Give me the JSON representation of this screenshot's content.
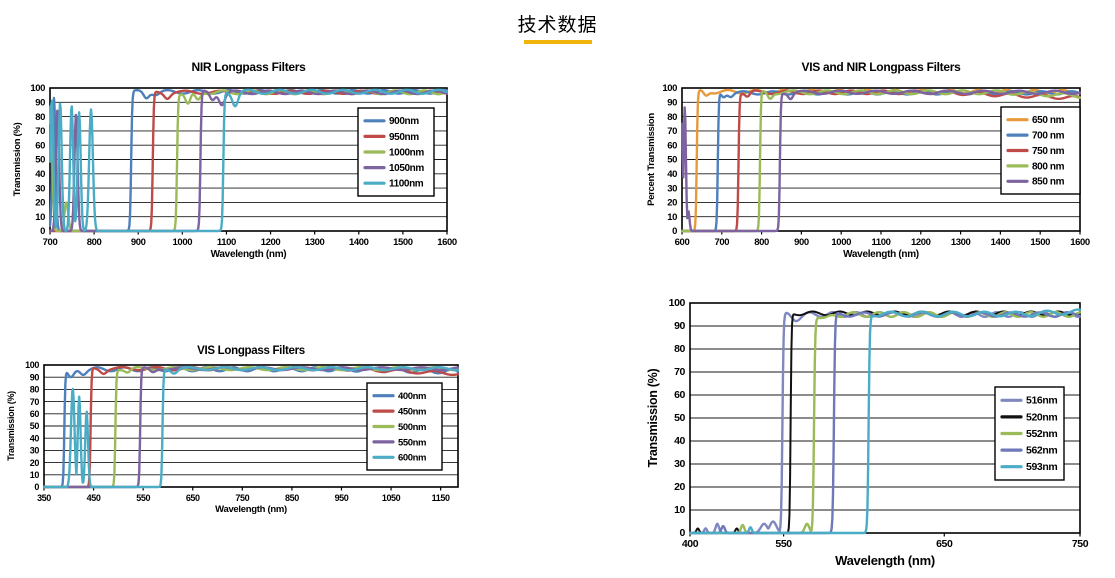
{
  "page": {
    "title": "技术数据",
    "title_underline_color": "#F0B40A",
    "background": "#ffffff"
  },
  "chart_data": [
    {
      "id": "nir-longpass",
      "type": "line",
      "title": "NIR Longpass Filters",
      "xlabel": "Wavelength (nm)",
      "ylabel": "Transmission (%)",
      "x_min": 700,
      "x_max": 1600,
      "x_ticks": [
        700,
        800,
        900,
        1000,
        1100,
        1200,
        1300,
        1400,
        1500,
        1600
      ],
      "y_min": 0,
      "y_max": 100,
      "y_ticks": [
        0,
        10,
        20,
        30,
        40,
        50,
        60,
        70,
        80,
        90,
        100
      ],
      "grid": "horizontal",
      "legend_position": "inside-right",
      "series": [
        {
          "label": "900nm",
          "color": "#4E80BC",
          "cuton": 884,
          "rise_w": 5,
          "peak": 97.3,
          "spikes": [
            [
              709,
              93,
              5
            ]
          ],
          "notches": [
            [
              918,
              4,
              8
            ],
            [
              941,
              1.5,
              10
            ]
          ],
          "ripple": {
            "amp": 1.2,
            "period": 70,
            "phase": 0.5
          }
        },
        {
          "label": "950nm",
          "color": "#BE4B48",
          "cuton": 933,
          "rise_w": 5,
          "peak": 97,
          "spikes": [],
          "notches": [
            [
              966,
              3.5,
              9
            ]
          ],
          "ripple": {
            "amp": 1.1,
            "period": 80,
            "phase": 2.1
          }
        },
        {
          "label": "1000nm",
          "color": "#9BBB59",
          "cuton": 988,
          "rise_w": 5,
          "peak": 97,
          "spikes": [
            [
              702,
              88,
              5
            ],
            [
              737,
              20,
              6
            ]
          ],
          "notches": [
            [
              1013,
              8,
              8
            ],
            [
              1035,
              6,
              9
            ]
          ],
          "ripple": {
            "amp": 1.3,
            "period": 65,
            "phase": 4.0
          }
        },
        {
          "label": "1050nm",
          "color": "#7E63A1",
          "cuton": 1041,
          "rise_w": 5,
          "peak": 97,
          "spikes": [
            [
              717,
              85,
              5
            ],
            [
              759,
              82,
              5
            ]
          ],
          "notches": [
            [
              1068,
              5,
              8
            ],
            [
              1090,
              8,
              9
            ]
          ],
          "ripple": {
            "amp": 1.2,
            "period": 75,
            "phase": 1.2
          }
        },
        {
          "label": "1100nm",
          "color": "#4BACC6",
          "cuton": 1093,
          "rise_w": 5,
          "peak": 97.4,
          "spikes": [
            [
              704,
              92,
              5
            ],
            [
              723,
              90,
              5
            ],
            [
              749,
              88,
              5
            ],
            [
              766,
              83,
              5
            ],
            [
              793,
              85,
              6
            ]
          ],
          "notches": [
            [
              1120,
              9,
              9
            ]
          ],
          "ripple": {
            "amp": 1.4,
            "period": 72,
            "phase": 3.0
          }
        }
      ]
    },
    {
      "id": "vis-nir-longpass",
      "type": "line",
      "title": "VIS and NIR Longpass Filters",
      "xlabel": "Wavelength (nm)",
      "ylabel": "Percent Transmission",
      "x_min": 600,
      "x_max": 1600,
      "x_ticks": [
        600,
        700,
        800,
        900,
        1000,
        1100,
        1200,
        1300,
        1400,
        1500,
        1600
      ],
      "y_min": 0,
      "y_max": 100,
      "y_ticks": [
        0,
        10,
        20,
        30,
        40,
        50,
        60,
        70,
        80,
        90,
        100
      ],
      "grid": "horizontal",
      "legend_position": "inside-right",
      "series": [
        {
          "label": "650 nm",
          "color": "#E69A3C",
          "cuton": 637,
          "rise_w": 5,
          "peak": 97.4,
          "spikes": [],
          "notches": [
            [
              660,
              3,
              8
            ]
          ],
          "ripple": {
            "amp": 1.2,
            "period": 70,
            "phase": 0.8
          }
        },
        {
          "label": "700 nm",
          "color": "#4E80BC",
          "cuton": 690,
          "rise_w": 5,
          "peak": 96.6,
          "spikes": [],
          "notches": [
            [
              704,
              2.5,
              7
            ],
            [
              723,
              2,
              8
            ]
          ],
          "ripple": {
            "amp": 1.1,
            "period": 75,
            "phase": 2.5
          }
        },
        {
          "label": "750 nm",
          "color": "#BE4B48",
          "cuton": 742,
          "rise_w": 5,
          "peak": 97,
          "spikes": [],
          "notches": [
            [
              765,
              3,
              8
            ]
          ],
          "ripple": {
            "amp": 1.2,
            "period": 80,
            "phase": 4.5
          },
          "drift": {
            "from": 1250,
            "delta": -4
          }
        },
        {
          "label": "800 nm",
          "color": "#9BBB59",
          "cuton": 796,
          "rise_w": 5,
          "peak": 97,
          "spikes": [],
          "notches": [
            [
              821,
              4,
              8
            ]
          ],
          "ripple": {
            "amp": 1.3,
            "period": 85,
            "phase": 1.7
          },
          "drift": {
            "from": 1400,
            "delta": -2.5
          }
        },
        {
          "label": "850 nm",
          "color": "#7E63A1",
          "cuton": 846,
          "rise_w": 5,
          "peak": 97,
          "spikes": [
            [
              599,
              78,
              5
            ],
            [
              607,
              87,
              4
            ],
            [
              616,
              14,
              4
            ]
          ],
          "notches": [
            [
              873,
              4,
              8
            ]
          ],
          "ripple": {
            "amp": 1.1,
            "period": 90,
            "phase": 3.6
          }
        }
      ]
    },
    {
      "id": "vis-longpass",
      "type": "line",
      "title": "VIS Longpass Filters",
      "xlabel": "Wavelength (nm)",
      "ylabel": "Transmission (%)",
      "x_min": 350,
      "x_max": 1185,
      "x_ticks": [
        350,
        450,
        550,
        650,
        750,
        850,
        950,
        1050,
        1150
      ],
      "y_min": 0,
      "y_max": 100,
      "y_ticks": [
        0,
        10,
        20,
        30,
        40,
        50,
        60,
        70,
        80,
        90,
        100
      ],
      "grid": "horizontal",
      "legend_position": "inside-right",
      "series": [
        {
          "label": "400nm",
          "color": "#4E80BC",
          "cuton": 391,
          "rise_w": 4,
          "peak": 96.5,
          "spikes": [],
          "notches": [
            [
              404,
              8,
              9
            ],
            [
              429,
              3,
              8
            ]
          ],
          "ripple": {
            "amp": 1.6,
            "period": 55,
            "phase": 0.3
          },
          "drift": {
            "from": 950,
            "delta": -2
          }
        },
        {
          "label": "450nm",
          "color": "#BE4B48",
          "cuton": 444,
          "rise_w": 4,
          "peak": 97,
          "spikes": [],
          "notches": [
            [
              470,
              3,
              8
            ]
          ],
          "ripple": {
            "amp": 1.3,
            "period": 70,
            "phase": 2.2
          },
          "drift": {
            "from": 950,
            "delta": -4
          }
        },
        {
          "label": "500nm",
          "color": "#9BBB59",
          "cuton": 494,
          "rise_w": 4,
          "peak": 97,
          "spikes": [],
          "notches": [
            [
              519,
              3,
              8
            ]
          ],
          "ripple": {
            "amp": 1.2,
            "period": 75,
            "phase": 4.1
          }
        },
        {
          "label": "550nm",
          "color": "#7E63A1",
          "cuton": 544,
          "rise_w": 4,
          "peak": 97,
          "spikes": [],
          "notches": [
            [
              569,
              3,
              8
            ]
          ],
          "ripple": {
            "amp": 1.1,
            "period": 80,
            "phase": 1.0
          }
        },
        {
          "label": "600nm",
          "color": "#4BACC6",
          "cuton": 589,
          "rise_w": 4,
          "peak": 97,
          "spikes": [
            [
              408,
              81,
              5
            ],
            [
              421,
              74,
              4
            ],
            [
              436,
              62,
              4
            ]
          ],
          "notches": [
            [
              613,
              3,
              8
            ]
          ],
          "ripple": {
            "amp": 1.2,
            "period": 72,
            "phase": 3.2
          }
        }
      ]
    },
    {
      "id": "dye-longpass",
      "type": "line",
      "title": "",
      "xlabel": "Wavelength (nm)",
      "ylabel": "Transmission (%)",
      "x_axis_nonlinear": true,
      "frac_units": true,
      "x_min": 400,
      "x_max": 750,
      "x_ticks": [
        {
          "v": "400",
          "f": 0
        },
        {
          "v": "550",
          "f": 0.24
        },
        {
          "v": "650",
          "f": 0.652
        },
        {
          "v": "750",
          "f": 1
        }
      ],
      "y_min": 0,
      "y_max": 100,
      "y_ticks": [
        0,
        10,
        20,
        30,
        40,
        50,
        60,
        70,
        80,
        90,
        100
      ],
      "grid": "horizontal",
      "legend_position": "inside-right",
      "series": [
        {
          "label": "516nm",
          "color": "#8088C0",
          "cuton": 0.237,
          "rise_w": 0.006,
          "peak": 95,
          "spikes": [
            [
              0.04,
              2,
              0.005
            ],
            [
              0.07,
              4,
              0.006
            ],
            [
              0.19,
              4,
              0.012
            ],
            [
              0.213,
              5,
              0.012
            ]
          ],
          "notches": [
            [
              0.27,
              2,
              0.015
            ]
          ],
          "ripple": {
            "amp": 1.0,
            "period": 0.06,
            "phase": 0.6
          }
        },
        {
          "label": "520nm",
          "color": "#111111",
          "lw": 2.0,
          "cuton": 0.258,
          "rise_w": 0.005,
          "peak": 95.5,
          "spikes": [
            [
              0.02,
              2,
              0.005
            ],
            [
              0.12,
              2,
              0.005
            ]
          ],
          "notches": [],
          "ripple": {
            "amp": 0.8,
            "period": 0.07,
            "phase": 2.8
          }
        },
        {
          "label": "552nm",
          "color": "#9BBB59",
          "cuton": 0.318,
          "rise_w": 0.006,
          "peak": 95,
          "spikes": [
            [
              0.135,
              3.5,
              0.006
            ],
            [
              0.3,
              4,
              0.008
            ]
          ],
          "notches": [
            [
              0.347,
              2,
              0.018
            ]
          ],
          "ripple": {
            "amp": 1.0,
            "period": 0.065,
            "phase": 4.4
          }
        },
        {
          "label": "562nm",
          "color": "#6F78B9",
          "cuton": 0.369,
          "rise_w": 0.006,
          "peak": 95,
          "spikes": [
            [
              0.085,
              3,
              0.006
            ]
          ],
          "notches": [],
          "ripple": {
            "amp": 0.9,
            "period": 0.075,
            "phase": 1.4
          }
        },
        {
          "label": "593nm",
          "color": "#4BACC6",
          "cuton": 0.458,
          "rise_w": 0.006,
          "peak": 95.2,
          "spikes": [
            [
              0.155,
              2.5,
              0.005
            ]
          ],
          "notches": [],
          "ripple": {
            "amp": 1.0,
            "period": 0.08,
            "phase": 3.4
          },
          "drift": {
            "from": 0.85,
            "delta": 1
          }
        }
      ]
    }
  ]
}
